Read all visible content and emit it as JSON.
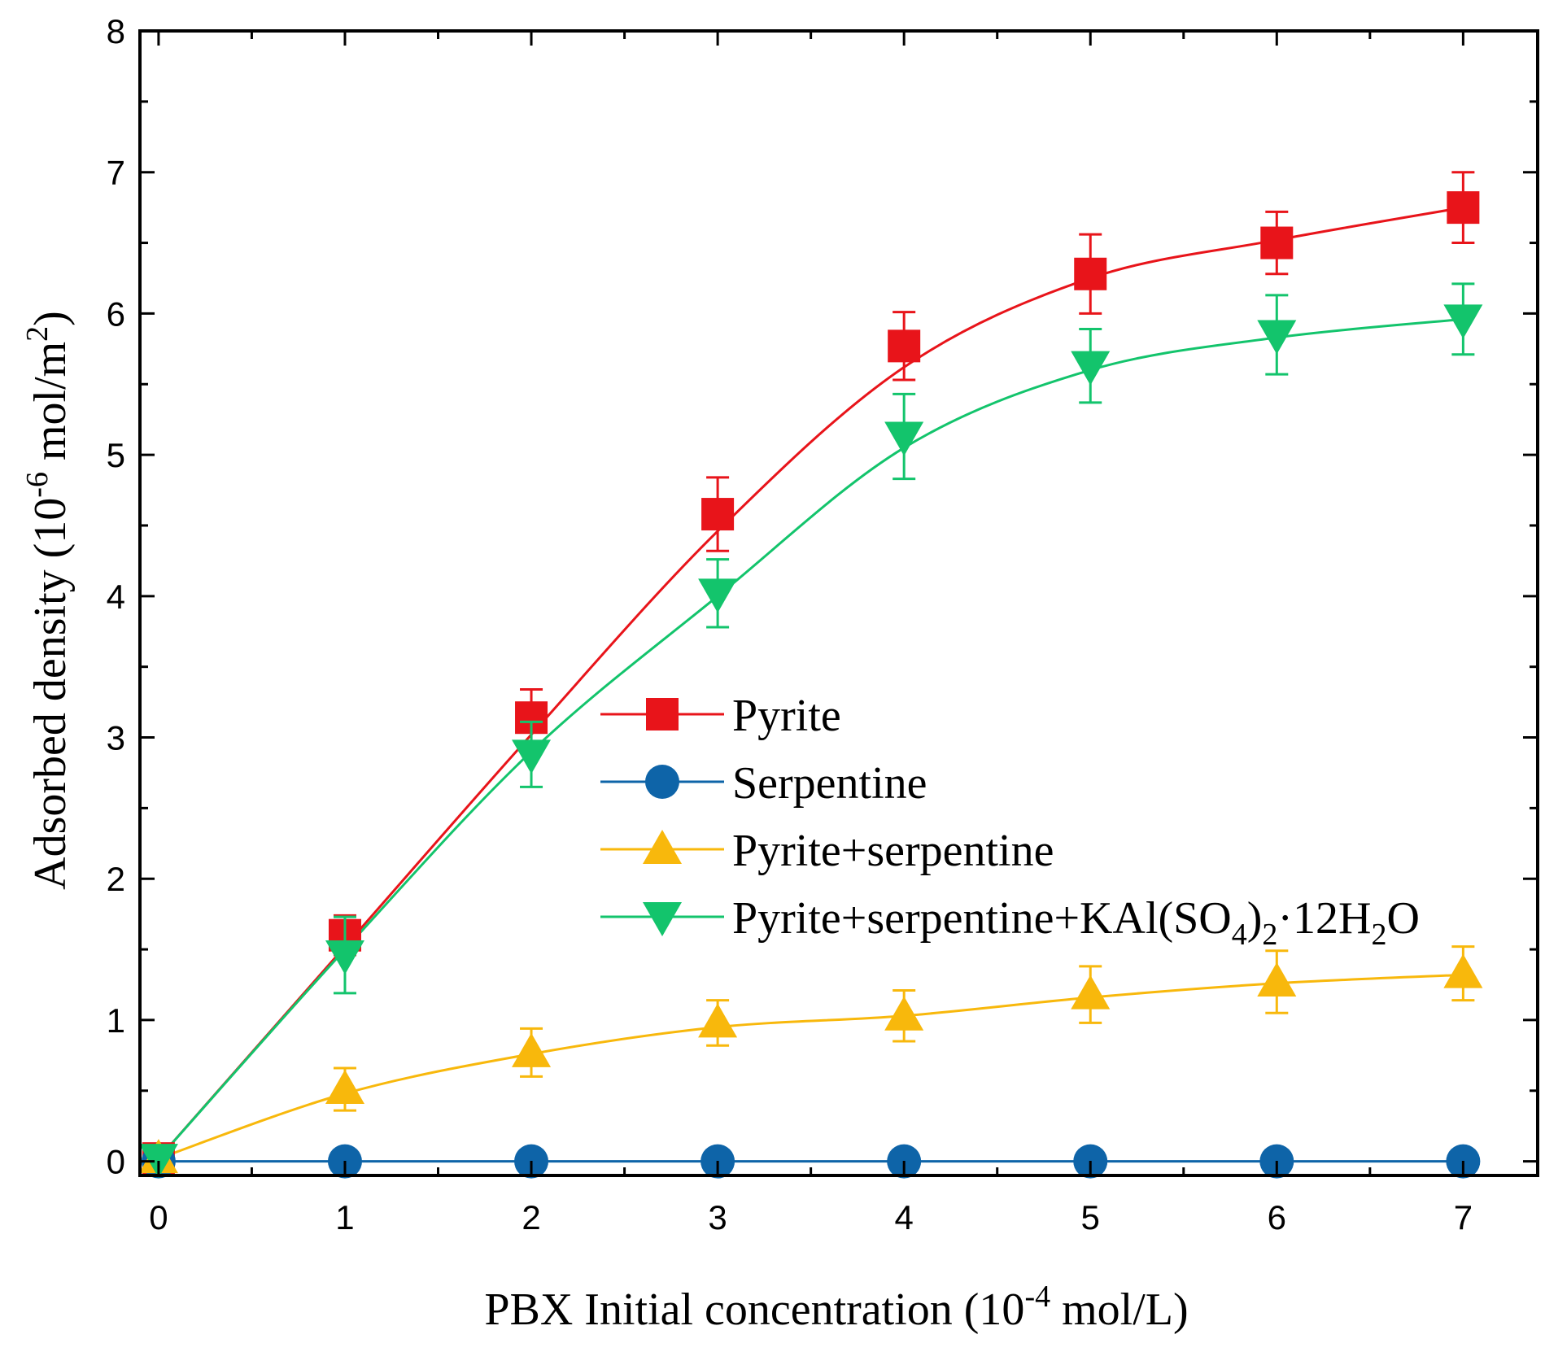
{
  "chart_data": {
    "type": "line",
    "title": "",
    "xlabel": {
      "main": "PBX Initial concentration (10",
      "sup": "-4",
      "tail": " mol/L)"
    },
    "ylabel": {
      "main": "Adsorbed density (10",
      "sup": "-6",
      "mid": " mol/m",
      "sup2": "2",
      "tail": ")"
    },
    "xlim": [
      -0.1,
      7.4
    ],
    "ylim": [
      -0.1,
      8.0
    ],
    "x_ticks": [
      0,
      1,
      2,
      3,
      4,
      5,
      6,
      7
    ],
    "x_tick_labels": [
      "0",
      "1",
      "2",
      "3",
      "4",
      "5",
      "6",
      "7"
    ],
    "y_ticks": [
      0,
      1,
      2,
      3,
      4,
      5,
      6,
      7,
      8
    ],
    "y_tick_labels": [
      "0",
      "1",
      "2",
      "3",
      "4",
      "5",
      "6",
      "7",
      "8"
    ],
    "grid": false,
    "legend_position": "center-right",
    "x": [
      0,
      1,
      2,
      3,
      4,
      5,
      6,
      7
    ],
    "series": [
      {
        "name": "Pyrite",
        "color": "#e8141a",
        "marker": "square",
        "values": [
          0.02,
          1.6,
          3.14,
          4.58,
          5.77,
          6.28,
          6.5,
          6.75
        ],
        "errors": [
          0,
          0.14,
          0.2,
          0.26,
          0.24,
          0.28,
          0.22,
          0.25
        ],
        "fit": [
          0.02,
          1.52,
          3.02,
          4.46,
          5.62,
          6.25,
          6.52,
          6.75
        ]
      },
      {
        "name": "Serpentine",
        "color": "#0e64a8",
        "marker": "circle",
        "values": [
          0,
          0,
          0,
          0,
          0,
          0,
          0,
          0
        ],
        "errors": [
          0,
          0,
          0,
          0,
          0,
          0,
          0,
          0
        ],
        "fit": [
          0,
          0,
          0,
          0,
          0,
          0,
          0,
          0
        ]
      },
      {
        "name": "Pyrite+serpentine",
        "color": "#f8b80c",
        "marker": "triangle-up",
        "values": [
          0.02,
          0.51,
          0.77,
          0.98,
          1.03,
          1.18,
          1.27,
          1.33
        ],
        "errors": [
          0,
          0.15,
          0.17,
          0.16,
          0.18,
          0.2,
          0.22,
          0.19
        ],
        "fit": [
          0.02,
          0.48,
          0.76,
          0.95,
          1.03,
          1.16,
          1.26,
          1.32
        ]
      },
      {
        "name": "Pyrite+serpentine+KAl(SO4)2·12H2O",
        "color": "#13c46c",
        "marker": "triangle-down",
        "values": [
          0.02,
          1.46,
          2.88,
          4.02,
          5.13,
          5.63,
          5.85,
          5.96
        ],
        "errors": [
          0,
          0.27,
          0.23,
          0.24,
          0.3,
          0.26,
          0.28,
          0.25
        ],
        "fit": [
          0.02,
          1.5,
          2.9,
          4.0,
          5.05,
          5.6,
          5.83,
          5.96
        ]
      }
    ],
    "legend": [
      {
        "main": "Pyrite"
      },
      {
        "main": "Serpentine"
      },
      {
        "main": "Pyrite+serpentine"
      },
      {
        "main": "Pyrite+serpentine+KAl(SO",
        "sub1": "4",
        "mid": ")",
        "sub2": "2",
        "tail": "·12H",
        "sub3": "2",
        "tail2": "O"
      }
    ]
  }
}
